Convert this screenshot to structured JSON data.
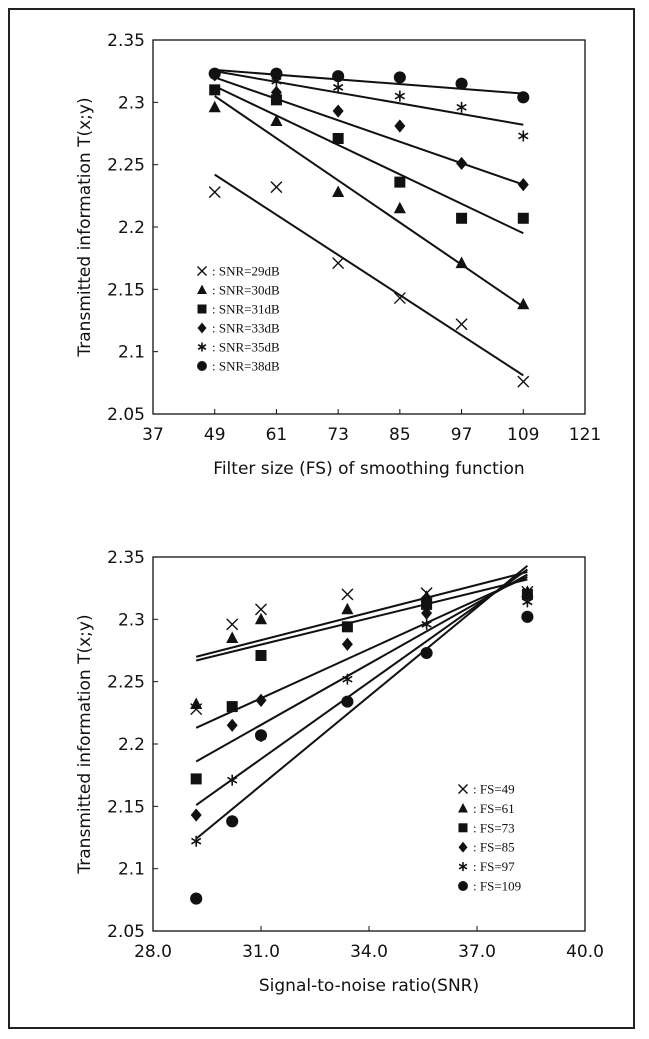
{
  "chart_data": [
    {
      "type": "scatter",
      "xlabel": "Filter size (FS) of smoothing function",
      "ylabel": "Transmitted information T(x;y)",
      "xlim": [
        37,
        121
      ],
      "ylim": [
        2.05,
        2.35
      ],
      "xticks": [
        "37",
        "49",
        "61",
        "73",
        "85",
        "97",
        "109",
        "121"
      ],
      "yticks": [
        "2.35",
        "2.3",
        "2.25",
        "2.2",
        "2.15",
        "2.1",
        "2.05"
      ],
      "legend_position": "bottom-left",
      "series": [
        {
          "name": ": SNR=29dB",
          "marker": "x",
          "x": [
            49,
            61,
            73,
            85,
            97,
            109
          ],
          "y": [
            2.228,
            2.232,
            2.171,
            2.143,
            2.122,
            2.076
          ],
          "fit": [
            2.242,
            2.081
          ]
        },
        {
          "name": ": SNR=30dB",
          "marker": "triangle",
          "x": [
            49,
            61,
            73,
            85,
            97,
            109
          ],
          "y": [
            2.296,
            2.285,
            2.228,
            2.215,
            2.171,
            2.138
          ],
          "fit": [
            2.305,
            2.136
          ]
        },
        {
          "name": ": SNR=31dB",
          "marker": "square",
          "x": [
            49,
            61,
            73,
            85,
            97,
            109
          ],
          "y": [
            2.31,
            2.302,
            2.271,
            2.236,
            2.207,
            2.207
          ],
          "fit": [
            2.313,
            2.195
          ]
        },
        {
          "name": ": SNR=33dB",
          "marker": "diamond",
          "x": [
            49,
            61,
            73,
            85,
            97,
            109
          ],
          "y": [
            2.322,
            2.308,
            2.293,
            2.281,
            2.251,
            2.234
          ],
          "fit": [
            2.32,
            2.234
          ]
        },
        {
          "name": ": SNR=35dB",
          "marker": "asterisk",
          "x": [
            49,
            61,
            73,
            85,
            97,
            109
          ],
          "y": [
            2.323,
            2.317,
            2.312,
            2.305,
            2.296,
            2.273
          ],
          "fit": [
            2.325,
            2.282
          ]
        },
        {
          "name": ": SNR=38dB",
          "marker": "circle",
          "x": [
            49,
            61,
            73,
            85,
            97,
            109
          ],
          "y": [
            2.323,
            2.323,
            2.321,
            2.32,
            2.315,
            2.304
          ],
          "fit": [
            2.326,
            2.307
          ]
        }
      ]
    },
    {
      "type": "scatter",
      "xlabel": "Signal-to-noise ratio(SNR)",
      "ylabel": "Transmitted information T(x;y)",
      "xlim": [
        28.0,
        40.0
      ],
      "ylim": [
        2.05,
        2.35
      ],
      "xticks": [
        "28.0",
        "31.0",
        "34.0",
        "37.0",
        "40.0"
      ],
      "yticks": [
        "2.35",
        "2.3",
        "2.25",
        "2.2",
        "2.15",
        "2.1",
        "2.05"
      ],
      "legend_position": "bottom-right",
      "series": [
        {
          "name": ": FS=49",
          "marker": "x",
          "x": [
            29.2,
            30.2,
            31.0,
            33.4,
            35.6,
            38.4
          ],
          "y": [
            2.228,
            2.296,
            2.308,
            2.32,
            2.321,
            2.322
          ],
          "fit": [
            2.27,
            2.338
          ]
        },
        {
          "name": ": FS=61",
          "marker": "triangle",
          "x": [
            29.2,
            30.2,
            31.0,
            33.4,
            35.6,
            38.4
          ],
          "y": [
            2.232,
            2.285,
            2.3,
            2.308,
            2.318,
            2.322
          ],
          "fit": [
            2.267,
            2.332
          ]
        },
        {
          "name": ": FS=73",
          "marker": "square",
          "x": [
            29.2,
            30.2,
            31.0,
            33.4,
            35.6,
            38.4
          ],
          "y": [
            2.172,
            2.23,
            2.271,
            2.294,
            2.312,
            2.32
          ],
          "fit": [
            2.213,
            2.334
          ]
        },
        {
          "name": ": FS=85",
          "marker": "diamond",
          "x": [
            29.2,
            30.2,
            31.0,
            33.4,
            35.6,
            38.4
          ],
          "y": [
            2.143,
            2.215,
            2.235,
            2.28,
            2.305,
            2.32
          ],
          "fit": [
            2.186,
            2.336
          ]
        },
        {
          "name": ": FS=97",
          "marker": "asterisk",
          "x": [
            29.2,
            30.2,
            31.0,
            33.4,
            35.6,
            38.4
          ],
          "y": [
            2.122,
            2.171,
            2.206,
            2.252,
            2.296,
            2.314
          ],
          "fit": [
            2.151,
            2.34
          ]
        },
        {
          "name": ": FS=109",
          "marker": "circle",
          "x": [
            29.2,
            30.2,
            31.0,
            33.4,
            35.6,
            38.4
          ],
          "y": [
            2.076,
            2.138,
            2.207,
            2.234,
            2.273,
            2.302
          ],
          "fit": [
            2.124,
            2.343
          ]
        }
      ]
    }
  ]
}
